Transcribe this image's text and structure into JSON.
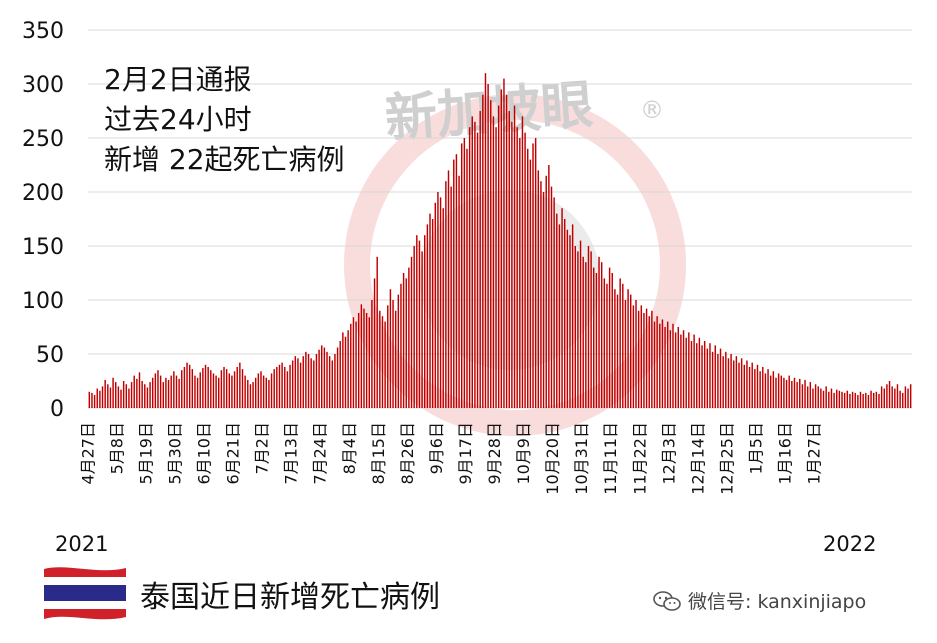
{
  "annotation": {
    "line1": "2月2日通报",
    "line2": "过去24小时",
    "line3": "新增 22起死亡病例"
  },
  "year_start": "2021",
  "year_end": "2022",
  "caption": "泰国近日新增死亡病例",
  "wechat_text": "微信号: kanxinjiapo",
  "watermark_text": "新加坡眼",
  "watermark_mark": "®",
  "colors": {
    "bar": "#c00000",
    "watermark": "#f4c0c0",
    "flag_red": "#d0202a",
    "flag_blue": "#2a2a8a"
  },
  "chart_data": {
    "type": "bar",
    "title": "",
    "xlabel": "",
    "ylabel": "",
    "ylim": [
      0,
      350
    ],
    "yticks": [
      0,
      50,
      100,
      150,
      200,
      250,
      300,
      350
    ],
    "grid": true,
    "legend": "none",
    "x_tick_labels": [
      "4月27日",
      "5月8日",
      "5月19日",
      "5月30日",
      "6月10日",
      "6月21日",
      "7月2日",
      "7月13日",
      "7月24日",
      "8月4日",
      "8月15日",
      "8月26日",
      "9月6日",
      "9月17日",
      "9月28日",
      "10月9日",
      "10月20日",
      "10月31日",
      "11月11日",
      "11月22日",
      "12月3日",
      "12月14日",
      "12月25日",
      "1月5日",
      "1月16日",
      "1月27日"
    ],
    "series": [
      {
        "start_date": "2021-04-27",
        "values": [
          15,
          14,
          12,
          18,
          16,
          20,
          26,
          22,
          19,
          28,
          24,
          20,
          17,
          25,
          22,
          18,
          24,
          30,
          27,
          33,
          25,
          22,
          19,
          24,
          28,
          32,
          35,
          30,
          24,
          28,
          26,
          30,
          34,
          30,
          27,
          35,
          38,
          42,
          40,
          36,
          30,
          28,
          33,
          37,
          40,
          38,
          35,
          32,
          30,
          28,
          35,
          38,
          36,
          32,
          30,
          34,
          38,
          42,
          36,
          30,
          26,
          22,
          24,
          28,
          32,
          34,
          30,
          28,
          26,
          32,
          36,
          38,
          40,
          42,
          38,
          34,
          40,
          44,
          48,
          46,
          42,
          48,
          52,
          50,
          46,
          44,
          50,
          54,
          58,
          56,
          52,
          48,
          44,
          50,
          56,
          62,
          70,
          66,
          72,
          78,
          84,
          80,
          88,
          96,
          92,
          88,
          84,
          100,
          120,
          140,
          90,
          85,
          80,
          95,
          110,
          100,
          90,
          105,
          115,
          125,
          120,
          130,
          140,
          150,
          160,
          155,
          145,
          160,
          170,
          180,
          175,
          190,
          200,
          195,
          185,
          210,
          220,
          205,
          230,
          235,
          215,
          245,
          250,
          240,
          260,
          270,
          265,
          255,
          275,
          290,
          310,
          300,
          285,
          270,
          260,
          280,
          295,
          305,
          290,
          275,
          265,
          280,
          260,
          250,
          270,
          255,
          240,
          230,
          245,
          250,
          220,
          210,
          200,
          215,
          225,
          205,
          195,
          180,
          170,
          185,
          175,
          165,
          160,
          170,
          150,
          145,
          155,
          140,
          135,
          150,
          145,
          130,
          125,
          140,
          135,
          120,
          115,
          130,
          125,
          110,
          105,
          120,
          115,
          100,
          110,
          105,
          95,
          100,
          90,
          95,
          88,
          92,
          85,
          90,
          80,
          85,
          78,
          82,
          75,
          80,
          72,
          78,
          70,
          75,
          68,
          72,
          65,
          70,
          62,
          68,
          60,
          65,
          58,
          62,
          55,
          60,
          52,
          58,
          50,
          55,
          48,
          52,
          46,
          50,
          44,
          48,
          42,
          46,
          40,
          44,
          38,
          42,
          36,
          40,
          34,
          38,
          32,
          36,
          30,
          34,
          28,
          32,
          30,
          28,
          26,
          30,
          25,
          28,
          24,
          27,
          22,
          26,
          20,
          24,
          18,
          22,
          20,
          18,
          16,
          20,
          15,
          18,
          14,
          17,
          16,
          15,
          14,
          16,
          13,
          15,
          14,
          12,
          15,
          13,
          14,
          12,
          16,
          14,
          15,
          13,
          20,
          18,
          22,
          25,
          20,
          18,
          22,
          16,
          14,
          20,
          18,
          22
        ]
      }
    ]
  }
}
